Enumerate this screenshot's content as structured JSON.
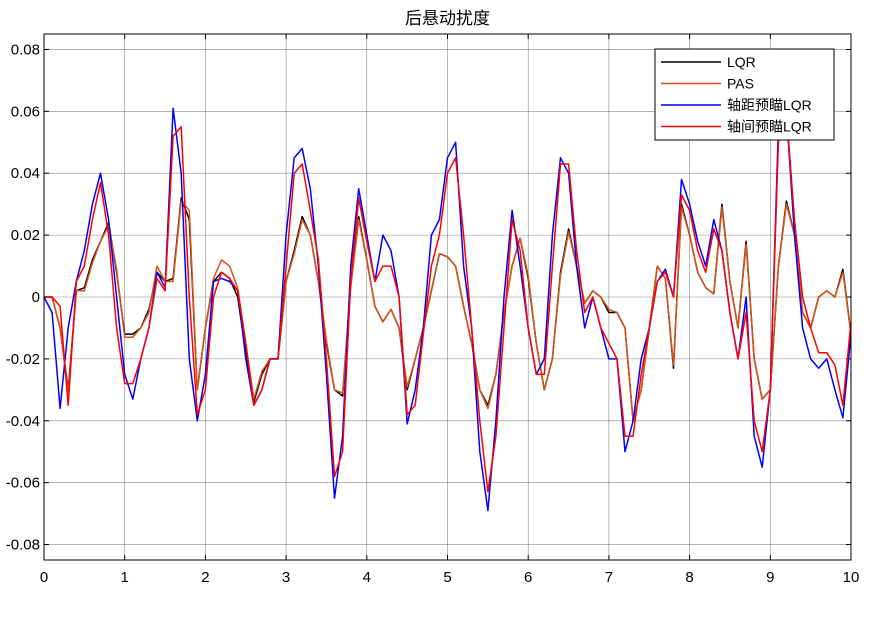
{
  "chart_data": {
    "type": "line",
    "title": "后悬动扰度",
    "xlabel": "",
    "ylabel": "",
    "xlim": [
      0,
      10
    ],
    "ylim": [
      -0.085,
      0.085
    ],
    "xticks": [
      0,
      1,
      2,
      3,
      4,
      5,
      6,
      7,
      8,
      9,
      10
    ],
    "xtick_labels": [
      "0",
      "1",
      "2",
      "3",
      "4",
      "5",
      "6",
      "7",
      "8",
      "9",
      "10"
    ],
    "yticks": [
      0.08,
      0.06,
      0.04,
      0.02,
      0,
      -0.02,
      -0.04,
      -0.06,
      -0.08
    ],
    "ytick_labels": [
      "0.08",
      "0.06",
      "0.04",
      "0.02",
      "0",
      "-0.02",
      "-0.04",
      "-0.06",
      "-0.08"
    ],
    "grid": true,
    "legend_position": "top-right",
    "series": [
      {
        "name": "LQR",
        "color": "#000000",
        "x": [
          0,
          0.1,
          0.2,
          0.3,
          0.4,
          0.5,
          0.6,
          0.7,
          0.8,
          0.9,
          1.0,
          1.1,
          1.2,
          1.3,
          1.4,
          1.5,
          1.6,
          1.7,
          1.8,
          1.9,
          2.0,
          2.1,
          2.2,
          2.3,
          2.4,
          2.5,
          2.6,
          2.7,
          2.8,
          2.9,
          3.0,
          3.1,
          3.2,
          3.3,
          3.4,
          3.5,
          3.6,
          3.7,
          3.8,
          3.9,
          4.0,
          4.1,
          4.2,
          4.3,
          4.4,
          4.5,
          4.6,
          4.7,
          4.8,
          4.9,
          5.0,
          5.1,
          5.2,
          5.3,
          5.4,
          5.5,
          5.6,
          5.7,
          5.8,
          5.9,
          6.0,
          6.1,
          6.2,
          6.3,
          6.4,
          6.5,
          6.6,
          6.7,
          6.8,
          6.9,
          7.0,
          7.1,
          7.2,
          7.3,
          7.4,
          7.5,
          7.6,
          7.7,
          7.8,
          7.9,
          8.0,
          8.1,
          8.2,
          8.3,
          8.4,
          8.5,
          8.6,
          8.7,
          8.8,
          8.9,
          9.0,
          9.1,
          9.2,
          9.3,
          9.4,
          9.5,
          9.6,
          9.7,
          9.8,
          9.9,
          10.0
        ],
        "y": [
          0,
          0,
          -0.01,
          -0.03,
          0.002,
          0.003,
          0.012,
          0.018,
          0.024,
          0.008,
          -0.012,
          -0.012,
          -0.01,
          -0.004,
          0.008,
          0.005,
          0.006,
          0.032,
          0.025,
          -0.03,
          -0.01,
          0.005,
          0.008,
          0.006,
          0.0,
          -0.018,
          -0.034,
          -0.025,
          -0.02,
          -0.02,
          0.005,
          0.015,
          0.026,
          0.02,
          0.005,
          -0.015,
          -0.03,
          -0.032,
          0.004,
          0.026,
          0.012,
          -0.003,
          -0.008,
          -0.004,
          -0.01,
          -0.03,
          -0.02,
          -0.01,
          0.002,
          0.014,
          0.013,
          0.01,
          -0.003,
          -0.015,
          -0.03,
          -0.035,
          -0.025,
          -0.005,
          0.01,
          0.019,
          0.006,
          -0.015,
          -0.03,
          -0.02,
          0.008,
          0.022,
          0.01,
          -0.002,
          0.002,
          0.0,
          -0.005,
          -0.005,
          -0.01,
          -0.04,
          -0.03,
          -0.01,
          0.01,
          0.006,
          -0.023,
          0.03,
          0.02,
          0.008,
          0.003,
          0.001,
          0.03,
          0.005,
          -0.01,
          0.018,
          -0.02,
          -0.033,
          -0.03,
          0.01,
          0.031,
          0.02,
          -0.005,
          -0.01,
          0.0,
          0.002,
          0.0,
          0.009,
          -0.012
        ]
      },
      {
        "name": "PAS",
        "color": "#d95319",
        "x": [
          0,
          0.1,
          0.2,
          0.3,
          0.4,
          0.5,
          0.6,
          0.7,
          0.8,
          0.9,
          1.0,
          1.1,
          1.2,
          1.3,
          1.4,
          1.5,
          1.6,
          1.7,
          1.8,
          1.9,
          2.0,
          2.1,
          2.2,
          2.3,
          2.4,
          2.5,
          2.6,
          2.7,
          2.8,
          2.9,
          3.0,
          3.1,
          3.2,
          3.3,
          3.4,
          3.5,
          3.6,
          3.7,
          3.8,
          3.9,
          4.0,
          4.1,
          4.2,
          4.3,
          4.4,
          4.5,
          4.6,
          4.7,
          4.8,
          4.9,
          5.0,
          5.1,
          5.2,
          5.3,
          5.4,
          5.5,
          5.6,
          5.7,
          5.8,
          5.9,
          6.0,
          6.1,
          6.2,
          6.3,
          6.4,
          6.5,
          6.6,
          6.7,
          6.8,
          6.9,
          7.0,
          7.1,
          7.2,
          7.3,
          7.4,
          7.5,
          7.6,
          7.7,
          7.8,
          7.9,
          8.0,
          8.1,
          8.2,
          8.3,
          8.4,
          8.5,
          8.6,
          8.7,
          8.8,
          8.9,
          9.0,
          9.1,
          9.2,
          9.3,
          9.4,
          9.5,
          9.6,
          9.7,
          9.8,
          9.9,
          10.0
        ],
        "y": [
          0,
          0,
          -0.01,
          -0.031,
          0.002,
          0.002,
          0.011,
          0.018,
          0.023,
          0.009,
          -0.013,
          -0.013,
          -0.01,
          -0.005,
          0.01,
          0.005,
          0.005,
          0.031,
          0.028,
          -0.03,
          -0.01,
          0.006,
          0.012,
          0.01,
          0.003,
          -0.015,
          -0.033,
          -0.024,
          -0.02,
          -0.02,
          0.005,
          0.014,
          0.025,
          0.02,
          0.005,
          -0.014,
          -0.03,
          -0.031,
          0.003,
          0.025,
          0.012,
          -0.003,
          -0.008,
          -0.004,
          -0.01,
          -0.029,
          -0.02,
          -0.01,
          0.002,
          0.014,
          0.013,
          0.01,
          -0.003,
          -0.015,
          -0.03,
          -0.036,
          -0.025,
          -0.005,
          0.01,
          0.019,
          0.007,
          -0.015,
          -0.03,
          -0.02,
          0.007,
          0.021,
          0.01,
          -0.002,
          0.002,
          0.0,
          -0.004,
          -0.005,
          -0.01,
          -0.04,
          -0.03,
          -0.01,
          0.01,
          0.006,
          -0.022,
          0.029,
          0.02,
          0.008,
          0.003,
          0.001,
          0.029,
          0.005,
          -0.01,
          0.017,
          -0.02,
          -0.033,
          -0.03,
          0.01,
          0.03,
          0.02,
          -0.005,
          -0.01,
          0.0,
          0.002,
          0.0,
          0.008,
          -0.012
        ]
      },
      {
        "name": "轴距预瞄LQR",
        "color": "#0000ff",
        "x": [
          0,
          0.1,
          0.2,
          0.3,
          0.4,
          0.5,
          0.6,
          0.7,
          0.8,
          0.9,
          1.0,
          1.1,
          1.2,
          1.3,
          1.4,
          1.5,
          1.6,
          1.7,
          1.8,
          1.9,
          2.0,
          2.1,
          2.2,
          2.3,
          2.4,
          2.5,
          2.6,
          2.7,
          2.8,
          2.9,
          3.0,
          3.1,
          3.2,
          3.3,
          3.4,
          3.5,
          3.6,
          3.7,
          3.8,
          3.9,
          4.0,
          4.1,
          4.2,
          4.3,
          4.4,
          4.5,
          4.6,
          4.7,
          4.8,
          4.9,
          5.0,
          5.1,
          5.2,
          5.3,
          5.4,
          5.5,
          5.6,
          5.7,
          5.8,
          5.9,
          6.0,
          6.1,
          6.2,
          6.3,
          6.4,
          6.5,
          6.6,
          6.7,
          6.8,
          6.9,
          7.0,
          7.1,
          7.2,
          7.3,
          7.4,
          7.5,
          7.6,
          7.7,
          7.8,
          7.9,
          8.0,
          8.1,
          8.2,
          8.3,
          8.4,
          8.5,
          8.6,
          8.7,
          8.8,
          8.9,
          9.0,
          9.1,
          9.2,
          9.3,
          9.4,
          9.5,
          9.6,
          9.7,
          9.8,
          9.9,
          10.0
        ],
        "y": [
          0,
          -0.005,
          -0.036,
          -0.01,
          0.005,
          0.015,
          0.03,
          0.04,
          0.025,
          0.0,
          -0.025,
          -0.033,
          -0.02,
          -0.01,
          0.008,
          0.003,
          0.061,
          0.04,
          -0.02,
          -0.04,
          -0.025,
          0.005,
          0.006,
          0.005,
          0.002,
          -0.02,
          -0.035,
          -0.03,
          -0.02,
          -0.02,
          0.02,
          0.045,
          0.048,
          0.035,
          0.01,
          -0.025,
          -0.065,
          -0.045,
          0.01,
          0.035,
          0.02,
          0.005,
          0.02,
          0.015,
          0.0,
          -0.041,
          -0.03,
          -0.01,
          0.02,
          0.025,
          0.045,
          0.05,
          0.01,
          -0.01,
          -0.05,
          -0.069,
          -0.04,
          0.0,
          0.028,
          0.01,
          -0.01,
          -0.025,
          -0.02,
          0.02,
          0.045,
          0.04,
          0.01,
          -0.01,
          0.0,
          -0.01,
          -0.02,
          -0.02,
          -0.05,
          -0.04,
          -0.02,
          -0.01,
          0.005,
          0.009,
          0.0,
          0.038,
          0.03,
          0.018,
          0.01,
          0.025,
          0.015,
          -0.005,
          -0.02,
          0.0,
          -0.045,
          -0.055,
          -0.03,
          0.055,
          0.06,
          0.02,
          -0.01,
          -0.02,
          -0.023,
          -0.02,
          -0.03,
          -0.039,
          -0.012
        ]
      },
      {
        "name": "轴间预瞄LQR",
        "color": "#ff0000",
        "x": [
          0,
          0.1,
          0.2,
          0.3,
          0.4,
          0.5,
          0.6,
          0.7,
          0.8,
          0.9,
          1.0,
          1.1,
          1.2,
          1.3,
          1.4,
          1.5,
          1.6,
          1.7,
          1.8,
          1.9,
          2.0,
          2.1,
          2.2,
          2.3,
          2.4,
          2.5,
          2.6,
          2.7,
          2.8,
          2.9,
          3.0,
          3.1,
          3.2,
          3.3,
          3.4,
          3.5,
          3.6,
          3.7,
          3.8,
          3.9,
          4.0,
          4.1,
          4.2,
          4.3,
          4.4,
          4.5,
          4.6,
          4.7,
          4.8,
          4.9,
          5.0,
          5.1,
          5.2,
          5.3,
          5.4,
          5.5,
          5.6,
          5.7,
          5.8,
          5.9,
          6.0,
          6.1,
          6.2,
          6.3,
          6.4,
          6.5,
          6.6,
          6.7,
          6.8,
          6.9,
          7.0,
          7.1,
          7.2,
          7.3,
          7.4,
          7.5,
          7.6,
          7.7,
          7.8,
          7.9,
          8.0,
          8.1,
          8.2,
          8.3,
          8.4,
          8.5,
          8.6,
          8.7,
          8.8,
          8.9,
          9.0,
          9.1,
          9.2,
          9.3,
          9.4,
          9.5,
          9.6,
          9.7,
          9.8,
          9.9,
          10.0
        ],
        "y": [
          0,
          0,
          -0.003,
          -0.035,
          0.005,
          0.01,
          0.025,
          0.037,
          0.02,
          -0.01,
          -0.028,
          -0.028,
          -0.02,
          -0.01,
          0.006,
          0.002,
          0.052,
          0.055,
          0.0,
          -0.038,
          -0.03,
          0.0,
          0.008,
          0.006,
          0.002,
          -0.015,
          -0.035,
          -0.03,
          -0.02,
          -0.02,
          0.01,
          0.04,
          0.043,
          0.028,
          0.012,
          -0.02,
          -0.058,
          -0.05,
          0.005,
          0.032,
          0.018,
          0.005,
          0.01,
          0.01,
          0.0,
          -0.038,
          -0.035,
          -0.012,
          0.01,
          0.02,
          0.04,
          0.045,
          0.02,
          -0.01,
          -0.04,
          -0.063,
          -0.045,
          -0.01,
          0.025,
          0.015,
          -0.01,
          -0.025,
          -0.025,
          0.01,
          0.043,
          0.043,
          0.015,
          -0.005,
          0.0,
          -0.01,
          -0.015,
          -0.02,
          -0.045,
          -0.045,
          -0.025,
          -0.01,
          0.005,
          0.008,
          0.0,
          0.033,
          0.028,
          0.015,
          0.008,
          0.022,
          0.015,
          -0.005,
          -0.02,
          -0.005,
          -0.04,
          -0.05,
          -0.03,
          0.05,
          0.06,
          0.025,
          0.0,
          -0.01,
          -0.018,
          -0.018,
          -0.022,
          -0.035,
          -0.008
        ]
      }
    ]
  }
}
